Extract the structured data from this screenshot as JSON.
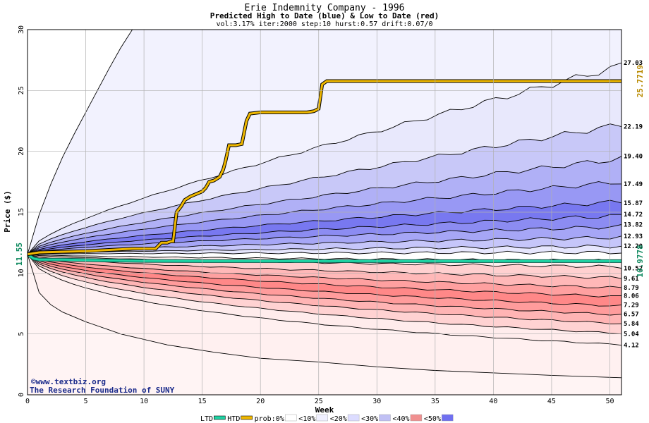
{
  "chart_data": {
    "type": "area",
    "title": "Erie Indemnity Company - 1996",
    "subtitle": "Predicted High to Date (blue) &  Low to Date (red)",
    "params": "vol:3.17% iter:2000 step:10 hurst:0.57 drift:0.07/0",
    "xlabel": "Week",
    "ylabel": "Price ($)",
    "xlim": [
      0,
      51
    ],
    "ylim": [
      0,
      30
    ],
    "x_ticks": [
      0,
      5,
      10,
      15,
      20,
      25,
      30,
      35,
      40,
      45,
      50
    ],
    "y_ticks": [
      0,
      5,
      10,
      15,
      20,
      25,
      30
    ],
    "grid": true,
    "start_price": 11.55,
    "start_price_label": "11.55",
    "high_quantiles": [
      {
        "label": "12.20",
        "value": 12.2
      },
      {
        "label": "12.93",
        "value": 12.93
      },
      {
        "label": "13.82",
        "value": 13.82
      },
      {
        "label": "14.72",
        "value": 14.72
      },
      {
        "label": "15.87",
        "value": 15.87
      },
      {
        "label": "17.49",
        "value": 17.49
      },
      {
        "label": "19.40",
        "value": 19.4
      },
      {
        "label": "22.19",
        "value": 22.19
      },
      {
        "label": "27.03",
        "value": 27.03
      }
    ],
    "low_quantiles": [
      {
        "label": "10.52",
        "value": 10.52
      },
      {
        "label": "9.61",
        "value": 9.61
      },
      {
        "label": "8.79",
        "value": 8.79
      },
      {
        "label": "8.06",
        "value": 8.06
      },
      {
        "label": "7.29",
        "value": 7.29
      },
      {
        "label": "6.57",
        "value": 6.57
      },
      {
        "label": "5.84",
        "value": 5.84
      },
      {
        "label": "5.04",
        "value": 5.04
      },
      {
        "label": "4.12",
        "value": 4.12
      }
    ],
    "htd_final": 25.7719,
    "htd_label": "25.7719",
    "ltd_final": 10.9778,
    "ltd_label": "10.9778",
    "htd_series": {
      "x": [
        0,
        1,
        3,
        5,
        7,
        9,
        11,
        11.5,
        12,
        12.3,
        12.5,
        12.8,
        13.2,
        13.5,
        14,
        14.5,
        15,
        15.3,
        15.6,
        16,
        16.5,
        16.8,
        17,
        17.3,
        17.6,
        17.9,
        18.4,
        18.8,
        19.1,
        20,
        21,
        22,
        23,
        24,
        24.6,
        25,
        25.3,
        25.7,
        28,
        32,
        36,
        40,
        44,
        48,
        51
      ],
      "y": [
        11.55,
        11.7,
        11.75,
        11.8,
        11.9,
        12.0,
        12.0,
        12.5,
        12.5,
        12.6,
        12.6,
        15.0,
        15.5,
        16.0,
        16.3,
        16.5,
        16.7,
        17.0,
        17.5,
        17.6,
        17.9,
        18.5,
        19.2,
        20.5,
        20.5,
        20.5,
        20.6,
        22.5,
        23.1,
        23.2,
        23.2,
        23.2,
        23.2,
        23.2,
        23.3,
        23.5,
        25.5,
        25.77,
        25.77,
        25.77,
        25.77,
        25.77,
        25.77,
        25.77,
        25.77
      ]
    },
    "ltd_series": {
      "x": [
        0,
        0.5,
        1,
        3,
        6,
        10,
        15,
        20,
        30,
        40,
        51
      ],
      "y": [
        11.55,
        11.2,
        11.1,
        11.1,
        11.05,
        11.0,
        10.98,
        10.98,
        10.98,
        10.98,
        10.98
      ]
    },
    "outer_high_curve": {
      "x": [
        0,
        1,
        2,
        3,
        4,
        5,
        6,
        7,
        8,
        9
      ],
      "y": [
        11.55,
        14.8,
        17.3,
        19.5,
        21.4,
        23.2,
        25.0,
        26.8,
        28.5,
        30.0
      ]
    },
    "outer_low_curve": {
      "x": [
        0,
        1,
        2,
        3,
        5,
        8,
        12,
        16,
        20,
        25,
        30,
        35,
        40,
        45,
        51
      ],
      "y": [
        11.55,
        8.4,
        7.4,
        6.8,
        6.0,
        5.0,
        4.1,
        3.5,
        3.0,
        2.7,
        2.3,
        2.0,
        1.8,
        1.6,
        1.4
      ]
    },
    "legend": [
      {
        "label": "LTD",
        "color": "#1fd3a4"
      },
      {
        "label": "HTD",
        "color": "#f0b800"
      },
      {
        "label": "prob:0%",
        "color": "#ffffff"
      },
      {
        "label": "<10%",
        "color": "#f0f0ff"
      },
      {
        "label": "<20%",
        "color": "#dcdcff"
      },
      {
        "label": "<30%",
        "color": "#c0c0f4"
      },
      {
        "label": "<40%",
        "color": "#f09090"
      },
      {
        "label": "<50%",
        "color": "#7070f0"
      }
    ],
    "band_colors_high": [
      "#e8e8fc",
      "#c8c8f8",
      "#b0b0f6",
      "#9898f4",
      "#7878f0",
      "#8c8cf2",
      "#a6a6f6",
      "#c6c6fa",
      "#e6e6fd"
    ],
    "band_colors_low": [
      "#fff0f0",
      "#ffd0d0",
      "#ffb8b8",
      "#ffa0a0",
      "#ff8888",
      "#ff9c9c",
      "#ffb4b4",
      "#ffd2d2",
      "#ffecec"
    ],
    "outer_high_fill": "#f2f2fe",
    "outer_low_fill": "#fff4f4",
    "credit_line1": "©www.textbiz.org",
    "credit_line2": "The Research Foundation of SUNY"
  }
}
